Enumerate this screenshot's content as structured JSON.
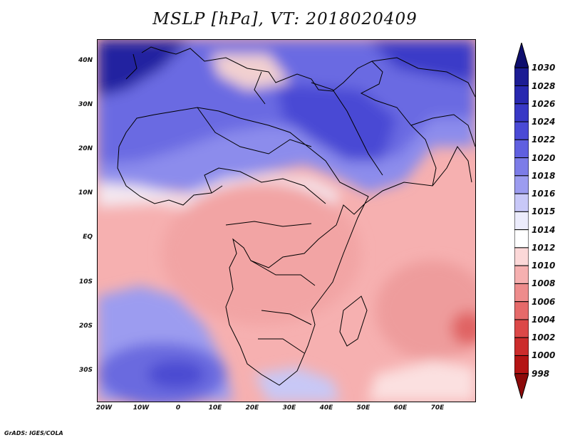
{
  "title": "MSLP [hPa], VT: 2018020409",
  "credit": "GrADS: IGES/COLA",
  "map": {
    "variable": "Mean sea level pressure",
    "units": "hPa",
    "valid_time": "2018020409",
    "region": "Africa, Middle East and western Indian Ocean",
    "lat_labels": [
      "40N",
      "30N",
      "20N",
      "10N",
      "EQ",
      "10S",
      "20S",
      "30S"
    ],
    "lon_labels": [
      "20W",
      "10W",
      "0",
      "10E",
      "20E",
      "30E",
      "40E",
      "50E",
      "60E",
      "70E"
    ]
  },
  "colorbar": {
    "levels": [
      "1030",
      "1028",
      "1026",
      "1024",
      "1022",
      "1020",
      "1018",
      "1016",
      "1015",
      "1014",
      "1012",
      "1010",
      "1008",
      "1006",
      "1004",
      "1002",
      "1000",
      "998"
    ],
    "colors": [
      "#0e0e6e",
      "#1c1c94",
      "#2828b0",
      "#3838c6",
      "#4a4ad6",
      "#6060e0",
      "#7c7ce8",
      "#9c9cf0",
      "#c8c8f8",
      "#ececfc",
      "#ffffff",
      "#fcd8d8",
      "#f6b0b0",
      "#ee8c8c",
      "#e66a6a",
      "#dc4848",
      "#cc2c2c",
      "#b41414",
      "#8c0a0a"
    ]
  }
}
